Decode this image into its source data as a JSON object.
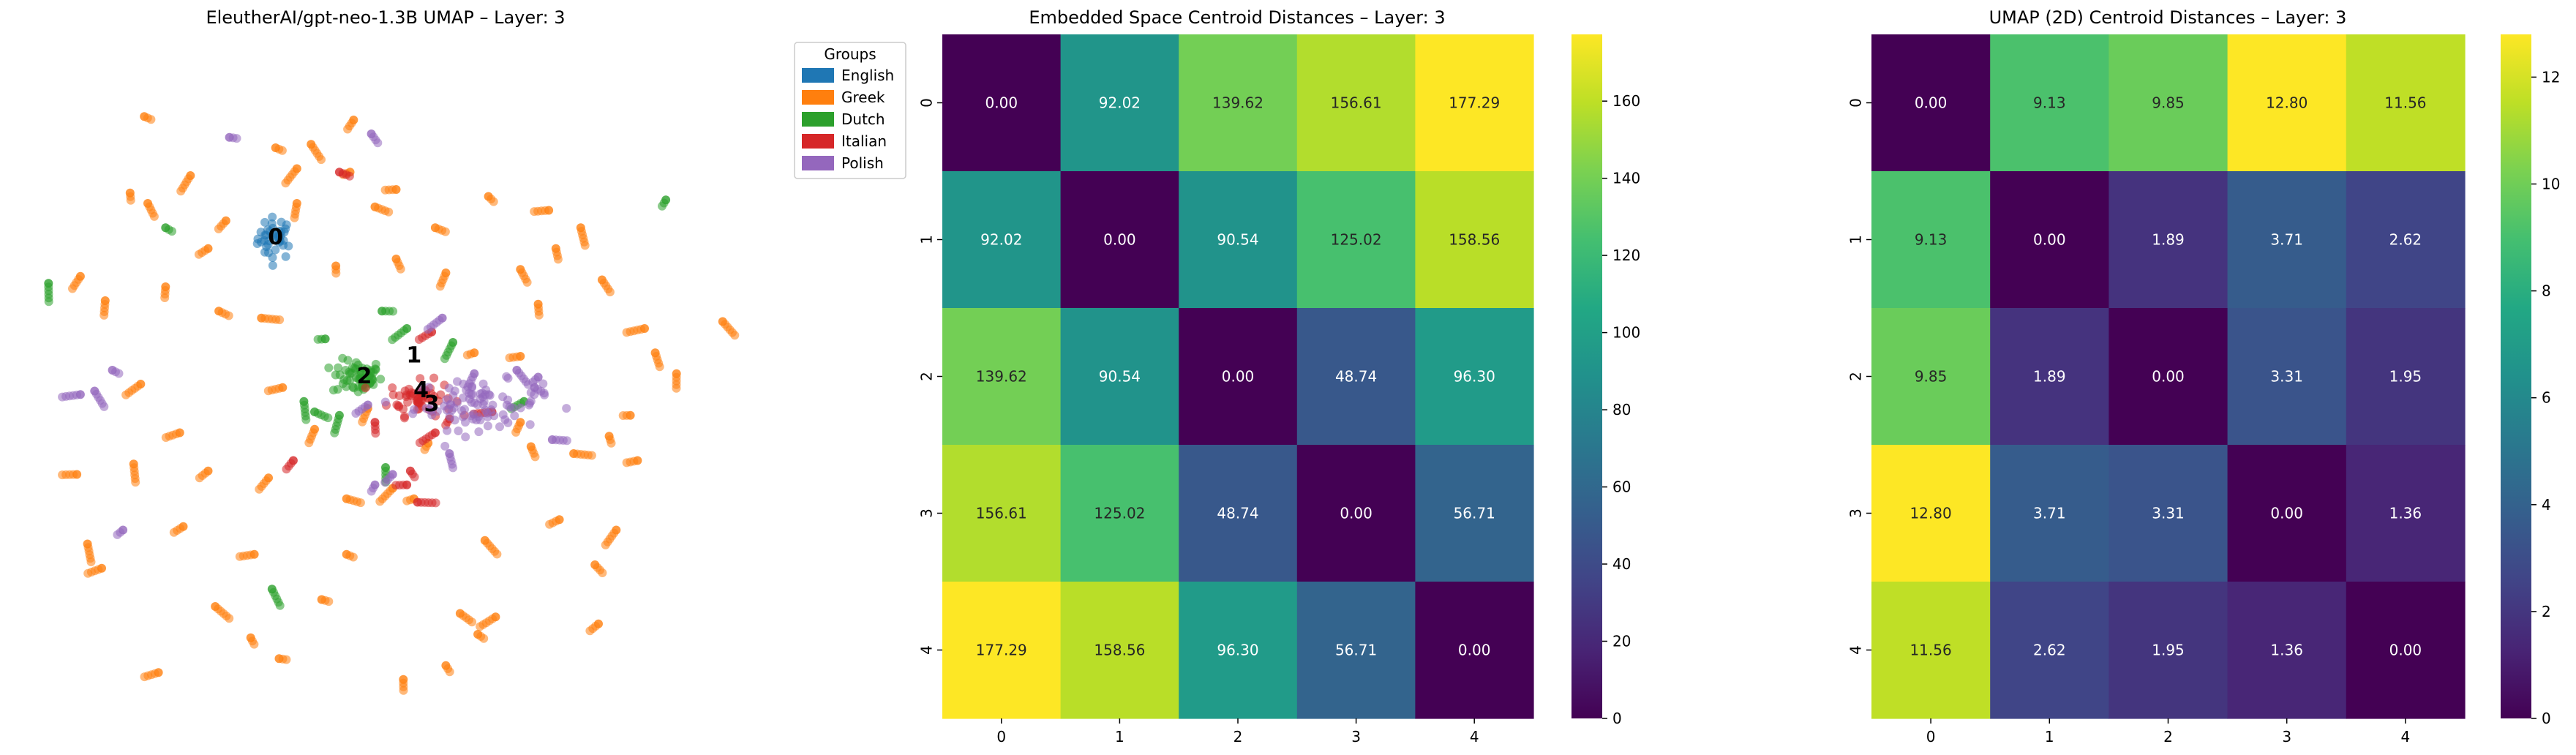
{
  "chart_data": [
    {
      "type": "scatter",
      "title": "EleutherAI/gpt-neo-1.3B UMAP – Layer: 3",
      "axes_visible": false,
      "legend": {
        "title": "Groups",
        "placement": "upper-right, outside plot",
        "entries": [
          {
            "name": "English",
            "color": "#1f77b4"
          },
          {
            "name": "Greek",
            "color": "#ff7f0e"
          },
          {
            "name": "Dutch",
            "color": "#2ca02c"
          },
          {
            "name": "Italian",
            "color": "#d62728"
          },
          {
            "name": "Polish",
            "color": "#9467bd"
          }
        ]
      },
      "xlim": [
        -10,
        10
      ],
      "ylim": [
        -10,
        10
      ],
      "centroids": [
        {
          "label": "0",
          "x": -3.1,
          "y": 4.2
        },
        {
          "label": "1",
          "x": 0.8,
          "y": 0.8
        },
        {
          "label": "2",
          "x": -0.6,
          "y": 0.2
        },
        {
          "label": "3",
          "x": 1.3,
          "y": -0.6
        },
        {
          "label": "4",
          "x": 1.0,
          "y": -0.2
        }
      ],
      "series": [
        {
          "name": "English",
          "clusters": [
            {
              "x": -3.1,
              "y": 4.2,
              "sx": 0.25,
              "sy": 0.3,
              "n": 40
            }
          ],
          "points": []
        },
        {
          "name": "Greek",
          "clusters": [],
          "points": [
            [
              -6.8,
              7.7
            ],
            [
              -3.1,
              6.8
            ],
            [
              -2.5,
              6.2
            ],
            [
              -6.7,
              5.2
            ],
            [
              -7.2,
              5.5
            ],
            [
              -2.1,
              6.9
            ],
            [
              -1.0,
              6.1
            ],
            [
              0.3,
              5.6
            ],
            [
              2.9,
              5.4
            ],
            [
              4.6,
              5.0
            ],
            [
              -4.5,
              4.7
            ],
            [
              -5.0,
              3.9
            ],
            [
              -6.2,
              2.8
            ],
            [
              -7.9,
              2.4
            ],
            [
              -8.6,
              3.1
            ],
            [
              -4.7,
              2.1
            ],
            [
              -3.5,
              1.9
            ],
            [
              -1.4,
              3.4
            ],
            [
              0.3,
              3.6
            ],
            [
              1.7,
              3.2
            ],
            [
              3.8,
              3.3
            ],
            [
              4.8,
              3.9
            ],
            [
              6.1,
              3.0
            ],
            [
              7.3,
              1.6
            ],
            [
              7.6,
              0.9
            ],
            [
              9.5,
              1.8
            ],
            [
              6.3,
              -1.5
            ],
            [
              7.1,
              -2.2
            ],
            [
              5.3,
              -2.0
            ],
            [
              4.1,
              -1.8
            ],
            [
              2.5,
              0.9
            ],
            [
              3.8,
              0.8
            ],
            [
              -8.7,
              -2.6
            ],
            [
              -7.1,
              -2.3
            ],
            [
              -5.8,
              -1.4
            ],
            [
              -5.0,
              -2.5
            ],
            [
              -2.0,
              -1.3
            ],
            [
              -1.1,
              -3.3
            ],
            [
              0.2,
              -3.0
            ],
            [
              1.2,
              -1.7
            ],
            [
              -5.7,
              -4.1
            ],
            [
              -3.7,
              -4.9
            ],
            [
              -8.0,
              -5.3
            ],
            [
              -1.1,
              -4.9
            ],
            [
              0.8,
              -3.3
            ],
            [
              2.8,
              -4.5
            ],
            [
              4.9,
              -3.9
            ],
            [
              6.5,
              -4.2
            ],
            [
              2.1,
              -6.6
            ],
            [
              3.1,
              -6.7
            ],
            [
              -4.8,
              -6.4
            ],
            [
              -1.8,
              -6.2
            ],
            [
              -3.8,
              -7.3
            ],
            [
              0.5,
              -8.5
            ],
            [
              1.7,
              -8.1
            ],
            [
              -6.4,
              -8.3
            ],
            [
              -3.0,
              -7.9
            ],
            [
              6.0,
              -6.9
            ],
            [
              3.8,
              -1.1
            ],
            [
              -0.3,
              5.1
            ],
            [
              -8.4,
              -4.6
            ],
            [
              -0.5,
              -0.7
            ],
            [
              1.4,
              4.5
            ],
            [
              -2.5,
              5.2
            ],
            [
              5.5,
              4.5
            ],
            [
              6.9,
              -0.9
            ],
            [
              -6.9,
              0.0
            ],
            [
              2.6,
              -7.2
            ],
            [
              -2.9,
              -0.1
            ],
            [
              4.3,
              2.3
            ],
            [
              -5.5,
              6.0
            ],
            [
              -0.9,
              7.6
            ],
            [
              8.2,
              0.3
            ],
            [
              -3.3,
              -2.7
            ],
            [
              5.9,
              -5.2
            ]
          ]
        },
        {
          "name": "Dutch",
          "clusters": [
            {
              "x": -0.8,
              "y": 0.2,
              "sx": 0.35,
              "sy": 0.25,
              "n": 60
            }
          ],
          "points": [
            [
              -6.2,
              4.5
            ],
            [
              -9.5,
              2.9
            ],
            [
              -0.1,
              2.1
            ],
            [
              -1.7,
              1.3
            ],
            [
              -1.3,
              -0.9
            ],
            [
              0.6,
              1.6
            ],
            [
              3.9,
              -0.5
            ],
            [
              1.9,
              1.2
            ],
            [
              -2.0,
              -0.8
            ],
            [
              -3.2,
              -5.9
            ],
            [
              0.0,
              -2.4
            ],
            [
              -2.3,
              -0.5
            ],
            [
              7.9,
              5.3
            ]
          ]
        },
        {
          "name": "Italian",
          "clusters": [
            {
              "x": 1.0,
              "y": -0.4,
              "sx": 0.45,
              "sy": 0.25,
              "n": 60
            }
          ],
          "points": [
            [
              -1.3,
              6.1
            ],
            [
              1.3,
              1.5
            ],
            [
              -2.6,
              -2.2
            ],
            [
              0.7,
              -2.5
            ],
            [
              0.6,
              -2.9
            ],
            [
              1.4,
              -1.4
            ],
            [
              1.8,
              -1.0
            ],
            [
              -0.3,
              -1.1
            ],
            [
              3.0,
              -0.8
            ],
            [
              0.9,
              -3.4
            ]
          ]
        },
        {
          "name": "Polish",
          "clusters": [
            {
              "x": 2.6,
              "y": -0.6,
              "sx": 0.9,
              "sy": 0.35,
              "n": 90
            }
          ],
          "points": [
            [
              -4.4,
              7.1
            ],
            [
              -0.4,
              7.2
            ],
            [
              1.6,
              1.9
            ],
            [
              -8.2,
              -0.2
            ],
            [
              -7.7,
              0.4
            ],
            [
              -8.6,
              -0.3
            ],
            [
              2.5,
              0.3
            ],
            [
              -0.3,
              -2.9
            ],
            [
              0.2,
              -2.6
            ],
            [
              4.7,
              -1.6
            ],
            [
              -0.5,
              -0.6
            ],
            [
              1.8,
              -2.0
            ],
            [
              3.7,
              0.4
            ],
            [
              4.2,
              -0.1
            ],
            [
              -7.4,
              -4.2
            ],
            [
              4.3,
              0.2
            ]
          ]
        }
      ]
    },
    {
      "type": "heatmap",
      "title": "Embedded Space Centroid Distances – Layer: 3",
      "x_ticks": [
        "0",
        "1",
        "2",
        "3",
        "4"
      ],
      "y_ticks": [
        "0",
        "1",
        "2",
        "3",
        "4"
      ],
      "colormap": "viridis",
      "vmin": 0,
      "vmax": 177.29,
      "colorbar_ticks": [
        "0",
        "20",
        "40",
        "60",
        "80",
        "100",
        "120",
        "140",
        "160"
      ],
      "values": [
        [
          "0.00",
          "92.02",
          "139.62",
          "156.61",
          "177.29"
        ],
        [
          "92.02",
          "0.00",
          "90.54",
          "125.02",
          "158.56"
        ],
        [
          "139.62",
          "90.54",
          "0.00",
          "48.74",
          "96.30"
        ],
        [
          "156.61",
          "125.02",
          "48.74",
          "0.00",
          "56.71"
        ],
        [
          "177.29",
          "158.56",
          "96.30",
          "56.71",
          "0.00"
        ]
      ]
    },
    {
      "type": "heatmap",
      "title": "UMAP (2D) Centroid Distances – Layer: 3",
      "x_ticks": [
        "0",
        "1",
        "2",
        "3",
        "4"
      ],
      "y_ticks": [
        "0",
        "1",
        "2",
        "3",
        "4"
      ],
      "colormap": "viridis",
      "vmin": 0,
      "vmax": 12.8,
      "colorbar_ticks": [
        "0",
        "2",
        "4",
        "6",
        "8",
        "10",
        "12"
      ],
      "values": [
        [
          "0.00",
          "9.13",
          "9.85",
          "12.80",
          "11.56"
        ],
        [
          "9.13",
          "0.00",
          "1.89",
          "3.71",
          "2.62"
        ],
        [
          "9.85",
          "1.89",
          "0.00",
          "3.31",
          "1.95"
        ],
        [
          "12.80",
          "3.71",
          "3.31",
          "0.00",
          "1.36"
        ],
        [
          "11.56",
          "2.62",
          "1.95",
          "1.36",
          "0.00"
        ]
      ]
    }
  ]
}
